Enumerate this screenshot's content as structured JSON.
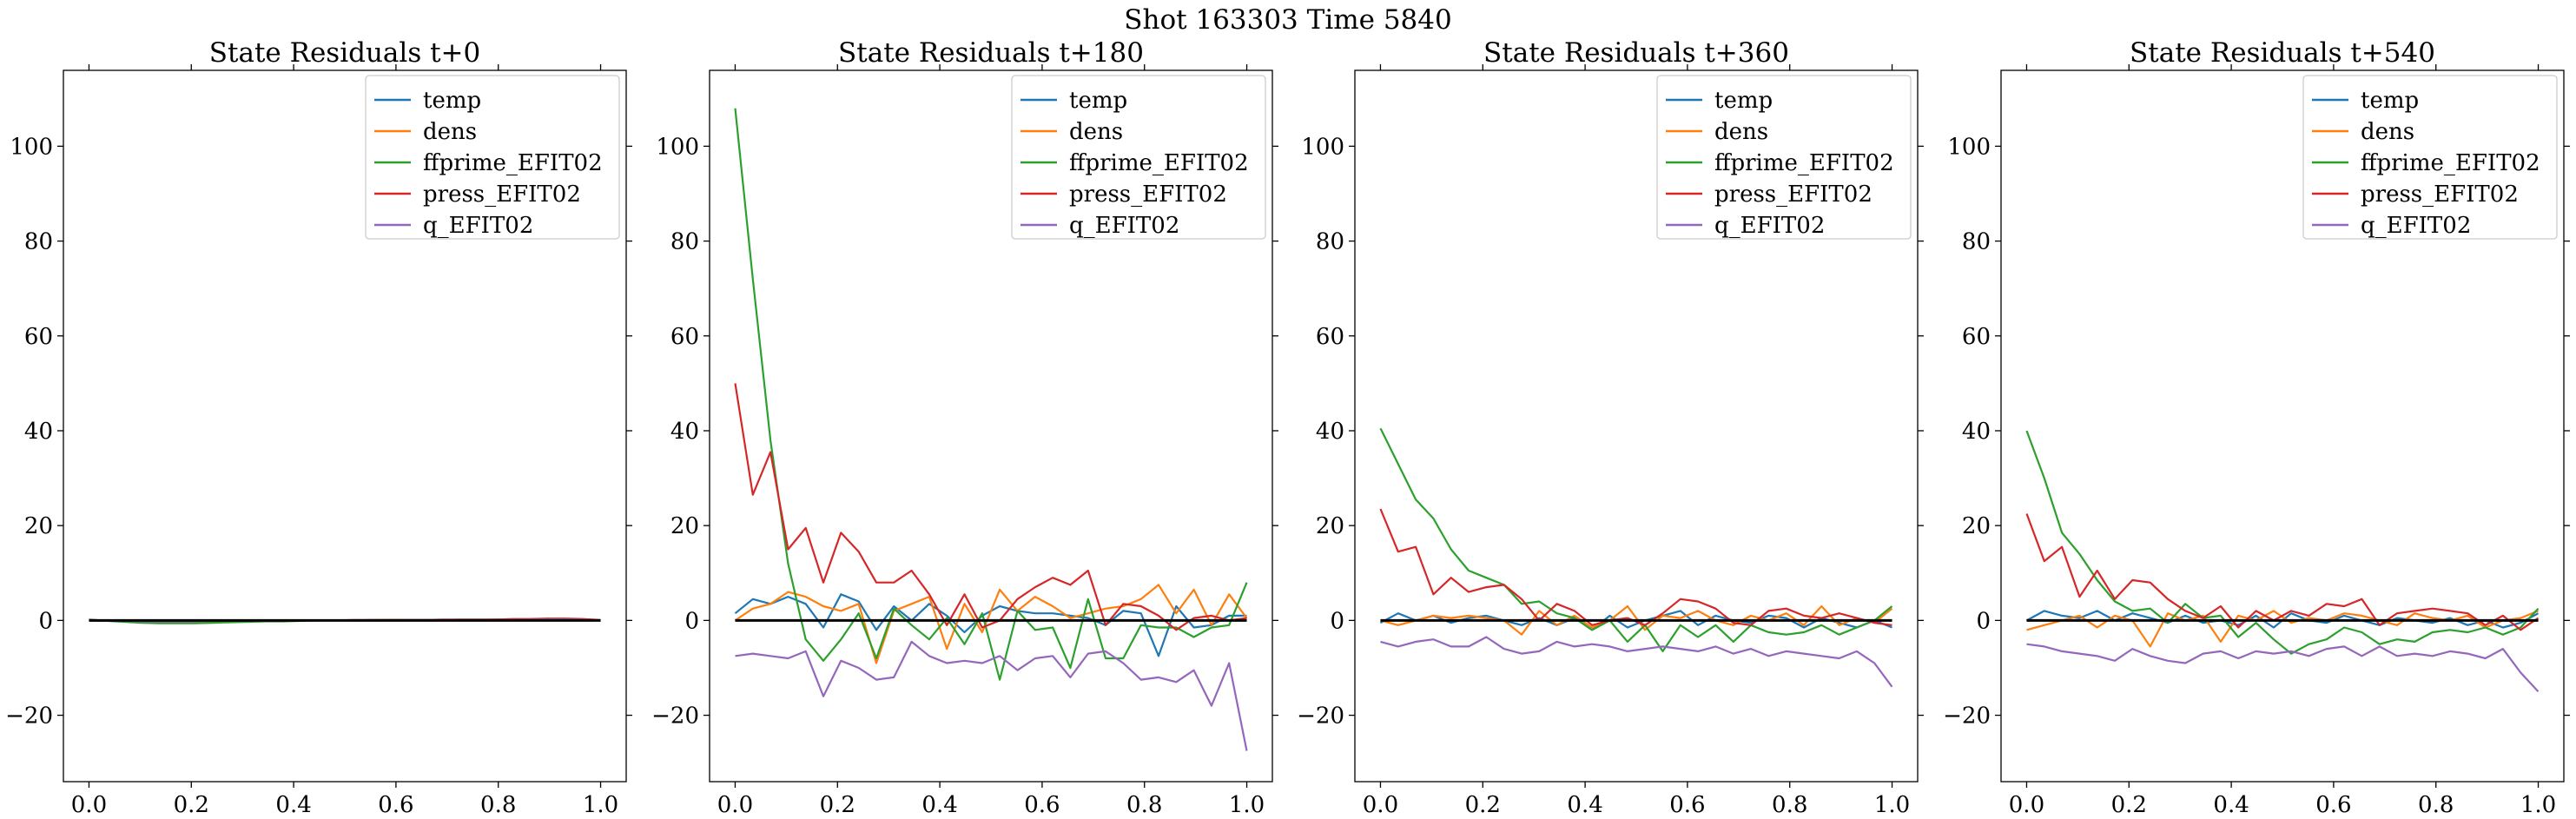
{
  "figure": {
    "suptitle": "Shot 163303   Time 5840"
  },
  "chart_data": [
    {
      "type": "line",
      "title": "State Residuals t+0",
      "xlabel": "",
      "ylabel": "",
      "xlim": [
        -0.05,
        1.05
      ],
      "ylim": [
        -34,
        116
      ],
      "xticks": [
        0.0,
        0.2,
        0.4,
        0.6,
        0.8,
        1.0
      ],
      "xtick_labels": [
        "0.0",
        "0.2",
        "0.4",
        "0.6",
        "0.8",
        "1.0"
      ],
      "yticks": [
        -20,
        0,
        20,
        40,
        60,
        80,
        100
      ],
      "ytick_labels": [
        "−20",
        "0",
        "20",
        "40",
        "60",
        "80",
        "100"
      ],
      "grid": false,
      "legend": "upper right",
      "x": [
        0.0,
        0.0345,
        0.069,
        0.1034,
        0.1379,
        0.1724,
        0.2069,
        0.2414,
        0.2759,
        0.3103,
        0.3448,
        0.3793,
        0.4138,
        0.4483,
        0.4828,
        0.5172,
        0.5517,
        0.5862,
        0.6207,
        0.6552,
        0.6897,
        0.7241,
        0.7586,
        0.7931,
        0.8276,
        0.8621,
        0.8966,
        0.931,
        0.9655,
        1.0
      ],
      "series": [
        {
          "name": "temp",
          "color": "#1f77b4",
          "values": [
            0.1,
            0.0,
            -0.2,
            -0.3,
            -0.3,
            -0.3,
            -0.3,
            -0.2,
            -0.2,
            -0.1,
            -0.1,
            -0.1,
            0.0,
            0.0,
            0.0,
            0.0,
            0.0,
            0.1,
            0.1,
            0.1,
            0.1,
            0.1,
            0.1,
            0.2,
            0.2,
            0.2,
            0.2,
            0.2,
            0.1,
            0.0
          ]
        },
        {
          "name": "dens",
          "color": "#ff7f0e",
          "values": [
            0.0,
            -0.1,
            -0.2,
            -0.3,
            -0.3,
            -0.2,
            -0.2,
            -0.2,
            -0.1,
            -0.1,
            -0.1,
            0.0,
            0.0,
            0.0,
            0.0,
            0.0,
            0.0,
            0.1,
            0.1,
            0.1,
            0.1,
            0.1,
            0.1,
            0.2,
            0.2,
            0.2,
            0.2,
            0.1,
            0.1,
            0.0
          ]
        },
        {
          "name": "ffprime_EFIT02",
          "color": "#2ca02c",
          "values": [
            0.2,
            -0.1,
            -0.3,
            -0.5,
            -0.6,
            -0.6,
            -0.6,
            -0.5,
            -0.4,
            -0.3,
            -0.2,
            -0.2,
            -0.1,
            0.0,
            0.0,
            0.0,
            0.1,
            0.1,
            0.1,
            0.1,
            0.1,
            0.2,
            0.2,
            0.2,
            0.2,
            0.2,
            0.3,
            0.3,
            0.2,
            0.0
          ]
        },
        {
          "name": "press_EFIT02",
          "color": "#d62728",
          "values": [
            0.1,
            0.0,
            -0.1,
            -0.2,
            -0.2,
            -0.2,
            -0.2,
            -0.1,
            -0.1,
            -0.1,
            0.0,
            0.0,
            0.0,
            0.0,
            0.0,
            0.1,
            0.1,
            0.1,
            0.1,
            0.1,
            0.2,
            0.2,
            0.2,
            0.2,
            0.3,
            0.3,
            0.4,
            0.4,
            0.3,
            0.1
          ]
        },
        {
          "name": "q_EFIT02",
          "color": "#9467bd",
          "values": [
            0.0,
            -0.1,
            -0.1,
            -0.2,
            -0.2,
            -0.2,
            -0.2,
            -0.1,
            -0.1,
            -0.1,
            -0.1,
            0.0,
            0.0,
            0.0,
            0.0,
            0.0,
            0.0,
            0.0,
            0.1,
            0.1,
            0.1,
            0.1,
            0.1,
            0.1,
            0.1,
            0.1,
            0.2,
            0.2,
            0.1,
            0.0
          ]
        }
      ]
    },
    {
      "type": "line",
      "title": "State Residuals t+180",
      "xlabel": "",
      "ylabel": "",
      "xlim": [
        -0.05,
        1.05
      ],
      "ylim": [
        -34,
        116
      ],
      "xticks": [
        0.0,
        0.2,
        0.4,
        0.6,
        0.8,
        1.0
      ],
      "xtick_labels": [
        "0.0",
        "0.2",
        "0.4",
        "0.6",
        "0.8",
        "1.0"
      ],
      "yticks": [
        -20,
        0,
        20,
        40,
        60,
        80,
        100
      ],
      "ytick_labels": [
        "−20",
        "0",
        "20",
        "40",
        "60",
        "80",
        "100"
      ],
      "grid": false,
      "legend": "upper right",
      "x": [
        0.0,
        0.0345,
        0.069,
        0.1034,
        0.1379,
        0.1724,
        0.2069,
        0.2414,
        0.2759,
        0.3103,
        0.3448,
        0.3793,
        0.4138,
        0.4483,
        0.4828,
        0.5172,
        0.5517,
        0.5862,
        0.6207,
        0.6552,
        0.6897,
        0.7241,
        0.7586,
        0.7931,
        0.8276,
        0.8621,
        0.8966,
        0.931,
        0.9655,
        1.0
      ],
      "series": [
        {
          "name": "temp",
          "color": "#1f77b4",
          "values": [
            1.5,
            4.5,
            3.5,
            5.0,
            3.5,
            -1.5,
            5.5,
            4.0,
            -2.0,
            3.0,
            0.0,
            3.5,
            1.0,
            -2.5,
            1.0,
            3.0,
            2.0,
            1.5,
            1.5,
            1.0,
            0.5,
            -1.0,
            2.0,
            1.5,
            -7.5,
            3.0,
            -1.5,
            -1.0,
            1.0,
            1.0
          ]
        },
        {
          "name": "dens",
          "color": "#ff7f0e",
          "values": [
            0.0,
            2.5,
            3.5,
            6.0,
            5.0,
            3.0,
            2.0,
            3.5,
            -9.0,
            2.0,
            3.5,
            5.0,
            -6.0,
            3.5,
            -2.5,
            6.5,
            2.0,
            5.0,
            3.0,
            0.5,
            1.5,
            2.5,
            3.0,
            4.5,
            7.5,
            1.5,
            6.5,
            -1.0,
            5.5,
            0.5
          ]
        },
        {
          "name": "ffprime_EFIT02",
          "color": "#2ca02c",
          "values": [
            108.0,
            72.0,
            38.0,
            12.0,
            -4.0,
            -8.5,
            -4.0,
            1.5,
            -8.0,
            2.5,
            -1.0,
            -4.0,
            0.5,
            -5.0,
            1.5,
            -12.5,
            2.0,
            -2.0,
            -1.5,
            -10.0,
            4.5,
            -8.0,
            -8.0,
            -1.0,
            -1.5,
            -1.5,
            -3.5,
            -1.5,
            -1.0,
            8.0
          ]
        },
        {
          "name": "press_EFIT02",
          "color": "#d62728",
          "values": [
            50.0,
            26.5,
            35.5,
            15.0,
            19.5,
            8.0,
            18.5,
            14.5,
            8.0,
            8.0,
            10.5,
            5.5,
            -1.0,
            5.5,
            -1.5,
            0.0,
            4.5,
            7.0,
            9.0,
            7.5,
            10.5,
            -1.0,
            3.5,
            3.0,
            1.0,
            -2.0,
            0.5,
            1.0,
            0.0,
            0.5
          ]
        },
        {
          "name": "q_EFIT02",
          "color": "#9467bd",
          "values": [
            -7.5,
            -7.0,
            -7.5,
            -8.0,
            -6.5,
            -16.0,
            -8.5,
            -10.0,
            -12.5,
            -12.0,
            -4.5,
            -7.5,
            -9.0,
            -8.5,
            -9.0,
            -7.5,
            -10.5,
            -8.0,
            -7.5,
            -12.0,
            -7.0,
            -6.5,
            -9.0,
            -12.5,
            -12.0,
            -13.0,
            -10.5,
            -18.0,
            -9.0,
            -27.5
          ]
        }
      ]
    },
    {
      "type": "line",
      "title": "State Residuals t+360",
      "xlabel": "",
      "ylabel": "",
      "xlim": [
        -0.05,
        1.05
      ],
      "ylim": [
        -34,
        116
      ],
      "xticks": [
        0.0,
        0.2,
        0.4,
        0.6,
        0.8,
        1.0
      ],
      "xtick_labels": [
        "0.0",
        "0.2",
        "0.4",
        "0.6",
        "0.8",
        "1.0"
      ],
      "yticks": [
        -20,
        0,
        20,
        40,
        60,
        80,
        100
      ],
      "ytick_labels": [
        "−20",
        "0",
        "20",
        "40",
        "60",
        "80",
        "100"
      ],
      "grid": false,
      "legend": "upper right",
      "x": [
        0.0,
        0.0345,
        0.069,
        0.1034,
        0.1379,
        0.1724,
        0.2069,
        0.2414,
        0.2759,
        0.3103,
        0.3448,
        0.3793,
        0.4138,
        0.4483,
        0.4828,
        0.5172,
        0.5517,
        0.5862,
        0.6207,
        0.6552,
        0.6897,
        0.7241,
        0.7586,
        0.7931,
        0.8276,
        0.8621,
        0.8966,
        0.931,
        0.9655,
        1.0
      ],
      "series": [
        {
          "name": "temp",
          "color": "#1f77b4",
          "values": [
            -0.5,
            1.5,
            0.0,
            1.0,
            -0.5,
            0.5,
            1.0,
            0.0,
            -1.0,
            0.5,
            -1.0,
            0.5,
            -2.0,
            1.0,
            -1.5,
            0.0,
            1.0,
            2.0,
            -1.0,
            1.0,
            0.0,
            -0.5,
            1.0,
            0.5,
            -1.5,
            0.5,
            -0.5,
            -1.5,
            0.0,
            -1.5
          ]
        },
        {
          "name": "dens",
          "color": "#ff7f0e",
          "values": [
            0.0,
            -1.0,
            0.0,
            1.0,
            0.5,
            1.0,
            0.5,
            0.0,
            -3.0,
            2.0,
            -1.0,
            1.0,
            -1.5,
            0.0,
            3.0,
            -2.0,
            1.0,
            0.5,
            2.0,
            0.0,
            -1.0,
            1.0,
            0.0,
            1.5,
            -1.0,
            3.0,
            -1.0,
            0.5,
            -0.5,
            2.5
          ]
        },
        {
          "name": "ffprime_EFIT02",
          "color": "#2ca02c",
          "values": [
            40.5,
            33.0,
            25.5,
            21.5,
            15.0,
            10.5,
            9.0,
            7.5,
            3.5,
            4.0,
            1.5,
            0.5,
            -2.0,
            0.0,
            -4.5,
            -1.0,
            -6.5,
            -1.0,
            -3.5,
            -1.0,
            -4.5,
            -1.0,
            -2.5,
            -3.0,
            -2.5,
            -1.0,
            -3.0,
            -1.5,
            0.0,
            3.0
          ]
        },
        {
          "name": "press_EFIT02",
          "color": "#d62728",
          "values": [
            23.5,
            14.5,
            15.5,
            5.5,
            9.0,
            6.0,
            7.0,
            7.5,
            4.5,
            0.0,
            3.5,
            2.0,
            -1.0,
            0.0,
            0.5,
            -1.0,
            1.5,
            4.5,
            4.0,
            2.5,
            -0.5,
            -1.0,
            2.0,
            2.5,
            1.0,
            0.5,
            1.5,
            0.5,
            -0.5,
            -1.0
          ]
        },
        {
          "name": "q_EFIT02",
          "color": "#9467bd",
          "values": [
            -4.5,
            -5.5,
            -4.5,
            -4.0,
            -5.5,
            -5.5,
            -3.5,
            -6.0,
            -7.0,
            -6.5,
            -4.5,
            -5.5,
            -5.0,
            -5.5,
            -6.5,
            -6.0,
            -5.5,
            -6.0,
            -6.5,
            -5.5,
            -7.0,
            -6.0,
            -7.5,
            -6.5,
            -7.0,
            -7.5,
            -8.0,
            -6.5,
            -9.0,
            -14.0
          ]
        }
      ]
    },
    {
      "type": "line",
      "title": "State Residuals t+540",
      "xlabel": "",
      "ylabel": "",
      "xlim": [
        -0.05,
        1.05
      ],
      "ylim": [
        -34,
        116
      ],
      "xticks": [
        0.0,
        0.2,
        0.4,
        0.6,
        0.8,
        1.0
      ],
      "xtick_labels": [
        "0.0",
        "0.2",
        "0.4",
        "0.6",
        "0.8",
        "1.0"
      ],
      "yticks": [
        -20,
        0,
        20,
        40,
        60,
        80,
        100
      ],
      "ytick_labels": [
        "−20",
        "0",
        "20",
        "40",
        "60",
        "80",
        "100"
      ],
      "grid": false,
      "legend": "upper right",
      "x": [
        0.0,
        0.0345,
        0.069,
        0.1034,
        0.1379,
        0.1724,
        0.2069,
        0.2414,
        0.2759,
        0.3103,
        0.3448,
        0.3793,
        0.4138,
        0.4483,
        0.4828,
        0.5172,
        0.5517,
        0.5862,
        0.6207,
        0.6552,
        0.6897,
        0.7241,
        0.7586,
        0.7931,
        0.8276,
        0.8621,
        0.8966,
        0.931,
        0.9655,
        1.0
      ],
      "series": [
        {
          "name": "temp",
          "color": "#1f77b4",
          "values": [
            0.0,
            2.0,
            1.0,
            0.5,
            2.0,
            0.0,
            1.5,
            0.5,
            -0.5,
            1.0,
            -0.5,
            0.0,
            -1.0,
            1.0,
            -1.5,
            1.5,
            0.0,
            -0.5,
            1.0,
            0.0,
            -1.0,
            0.5,
            0.0,
            -0.5,
            0.5,
            -1.0,
            0.0,
            -1.5,
            -0.5,
            1.5
          ]
        },
        {
          "name": "dens",
          "color": "#ff7f0e",
          "values": [
            -2.0,
            -1.0,
            0.0,
            1.0,
            -1.5,
            1.0,
            0.0,
            -5.5,
            1.5,
            0.0,
            1.0,
            -4.5,
            1.0,
            0.0,
            2.0,
            -0.5,
            0.5,
            0.0,
            1.5,
            1.0,
            0.0,
            -1.0,
            1.5,
            0.5,
            0.0,
            1.0,
            -1.5,
            0.0,
            0.5,
            2.0
          ]
        },
        {
          "name": "ffprime_EFIT02",
          "color": "#2ca02c",
          "values": [
            40.0,
            30.0,
            18.5,
            14.0,
            8.5,
            4.0,
            2.0,
            2.5,
            -0.5,
            3.5,
            0.5,
            1.0,
            -3.5,
            -0.5,
            -4.0,
            -7.0,
            -5.0,
            -4.0,
            -1.5,
            -2.5,
            -5.0,
            -4.0,
            -4.5,
            -2.5,
            -2.0,
            -2.5,
            -1.5,
            -3.0,
            -1.5,
            2.5
          ]
        },
        {
          "name": "press_EFIT02",
          "color": "#d62728",
          "values": [
            22.5,
            12.5,
            15.5,
            5.0,
            10.5,
            4.5,
            8.5,
            8.0,
            4.5,
            2.0,
            0.5,
            3.0,
            -1.5,
            2.0,
            0.0,
            2.0,
            1.0,
            3.5,
            3.0,
            4.5,
            -1.0,
            1.5,
            2.0,
            2.5,
            2.0,
            1.5,
            -1.0,
            1.0,
            -2.0,
            0.5
          ]
        },
        {
          "name": "q_EFIT02",
          "color": "#9467bd",
          "values": [
            -5.0,
            -5.5,
            -6.5,
            -7.0,
            -7.5,
            -8.5,
            -6.0,
            -7.5,
            -8.5,
            -9.0,
            -7.0,
            -6.5,
            -8.0,
            -6.5,
            -7.0,
            -6.5,
            -7.5,
            -6.0,
            -5.5,
            -7.5,
            -5.5,
            -7.5,
            -7.0,
            -7.5,
            -6.5,
            -7.0,
            -8.0,
            -6.0,
            -11.0,
            -15.0
          ]
        }
      ]
    }
  ]
}
